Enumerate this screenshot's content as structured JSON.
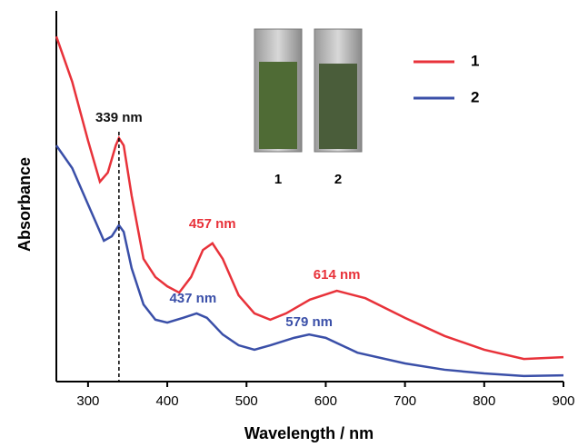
{
  "chart_data": {
    "type": "line",
    "x_label": "Wavelength / nm",
    "y_label": "Absorbance",
    "xlim": [
      260,
      900
    ],
    "xticks": [
      300,
      400,
      500,
      600,
      700,
      800,
      900
    ],
    "ylim": [
      0,
      1
    ],
    "legend": "top-right",
    "series": [
      {
        "name": "1",
        "color": "#e8323a",
        "x": [
          260,
          280,
          300,
          315,
          325,
          335,
          339,
          345,
          355,
          370,
          385,
          400,
          415,
          430,
          445,
          457,
          470,
          490,
          510,
          530,
          550,
          580,
          614,
          650,
          700,
          750,
          800,
          850,
          900
        ],
        "values": [
          0.931,
          0.809,
          0.65,
          0.539,
          0.564,
          0.637,
          0.657,
          0.637,
          0.502,
          0.331,
          0.282,
          0.257,
          0.24,
          0.282,
          0.355,
          0.373,
          0.331,
          0.233,
          0.184,
          0.167,
          0.184,
          0.221,
          0.245,
          0.225,
          0.172,
          0.123,
          0.086,
          0.061,
          0.066
        ]
      },
      {
        "name": "2",
        "color": "#3a4fa8",
        "x": [
          260,
          280,
          300,
          320,
          330,
          339,
          345,
          355,
          370,
          385,
          400,
          420,
          437,
          450,
          470,
          490,
          510,
          530,
          560,
          579,
          600,
          640,
          700,
          750,
          800,
          850,
          900
        ],
        "values": [
          0.637,
          0.576,
          0.478,
          0.38,
          0.392,
          0.422,
          0.404,
          0.306,
          0.208,
          0.167,
          0.159,
          0.172,
          0.184,
          0.172,
          0.127,
          0.098,
          0.086,
          0.098,
          0.118,
          0.127,
          0.118,
          0.078,
          0.049,
          0.032,
          0.022,
          0.015,
          0.017
        ]
      }
    ],
    "annotations": [
      {
        "text": "339 nm",
        "x": 339
      },
      {
        "text": "457 nm",
        "x": 457
      },
      {
        "text": "614 nm",
        "x": 614
      },
      {
        "text": "437 nm",
        "x": 437
      },
      {
        "text": "579 nm",
        "x": 579
      }
    ],
    "inset_labels": [
      "1",
      "2"
    ]
  }
}
